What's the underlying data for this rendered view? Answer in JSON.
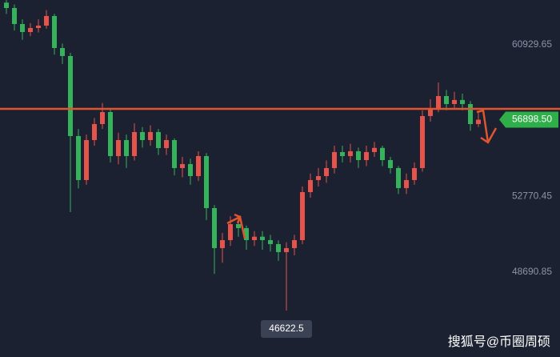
{
  "chart_data": {
    "type": "candlestick",
    "open": [
      63200,
      62912,
      62050,
      61619,
      61835,
      61964,
      62481,
      60758,
      60327,
      56018,
      53648,
      55802,
      56664,
      57310,
      54940,
      55802,
      54940,
      56233,
      55802,
      56233,
      55371,
      55802,
      54294,
      54510,
      53863,
      54940,
      52140,
      49985,
      50416,
      51278,
      51062,
      50416,
      50600,
      50416,
      50201,
      49770,
      49985,
      50416,
      53001,
      53648,
      53863,
      54294,
      55156,
      54940,
      55200,
      54725,
      55156,
      55380,
      54725,
      54294,
      53217,
      53648,
      54294,
      57095,
      57526,
      58172,
      57741,
      57960,
      57741,
      56664
    ],
    "high": [
      63340,
      63100,
      62300,
      62100,
      62300,
      62800,
      62600,
      61000,
      60500,
      56400,
      56100,
      57000,
      57800,
      57500,
      56200,
      56100,
      56700,
      56500,
      56600,
      56400,
      56100,
      55900,
      54900,
      54800,
      55200,
      55100,
      52300,
      50800,
      51700,
      51500,
      51200,
      50900,
      50900,
      50700,
      50400,
      50300,
      50700,
      53300,
      54000,
      54300,
      54700,
      55500,
      55500,
      55600,
      55400,
      55500,
      55700,
      55500,
      54900,
      54400,
      54000,
      54600,
      57400,
      58000,
      58900,
      58500,
      58400,
      58300,
      57900,
      57300
    ],
    "low": [
      62600,
      61700,
      61200,
      61400,
      61600,
      61800,
      60400,
      59900,
      51924,
      53200,
      53400,
      55500,
      56400,
      54600,
      54500,
      54300,
      54700,
      55400,
      55500,
      55000,
      55000,
      53900,
      53800,
      53400,
      53600,
      51500,
      48600,
      49200,
      50100,
      50600,
      49900,
      50100,
      49900,
      49800,
      49300,
      46622.5,
      49600,
      50200,
      52700,
      53300,
      53500,
      54000,
      54600,
      54600,
      54300,
      54400,
      54900,
      54400,
      54000,
      52900,
      52900,
      53400,
      54100,
      56800,
      57300,
      57400,
      57500,
      57400,
      56300,
      56500
    ],
    "close": [
      62912,
      62050,
      61619,
      61835,
      61964,
      62481,
      60758,
      60327,
      56018,
      53648,
      55802,
      56664,
      57310,
      54940,
      55802,
      54940,
      56233,
      55802,
      56233,
      55371,
      55802,
      54294,
      54510,
      53863,
      54940,
      52140,
      49985,
      50416,
      51278,
      51062,
      50416,
      50600,
      50416,
      50201,
      49770,
      49985,
      50416,
      53001,
      53648,
      53863,
      54294,
      55156,
      54940,
      55200,
      54725,
      55156,
      55380,
      54725,
      54294,
      53217,
      53648,
      54294,
      57095,
      57526,
      58172,
      57741,
      57960,
      57741,
      56664,
      56898.5
    ],
    "up_color": "#e5534b",
    "down_color": "#35b35a",
    "price_label": "56898.50",
    "ylim": [
      44123,
      63343
    ],
    "yticks": [
      60929.65,
      52770.45,
      48690.85
    ],
    "watermark": "搜狐号@币圈周硕"
  }
}
